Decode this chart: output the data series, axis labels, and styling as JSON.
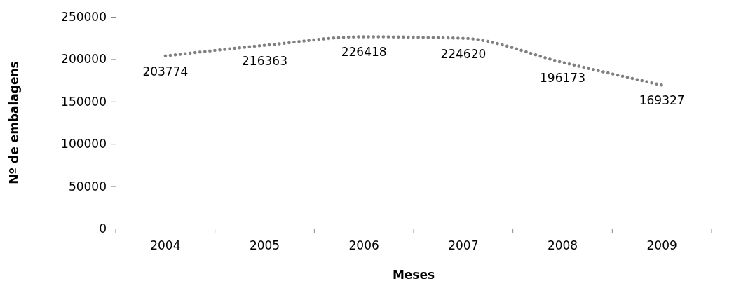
{
  "chart_data": {
    "type": "line",
    "xlabel": "Meses",
    "ylabel": "Nº de embalagens",
    "categories": [
      "2004",
      "2005",
      "2006",
      "2007",
      "2008",
      "2009"
    ],
    "series": [
      {
        "color": "#808080",
        "values": [
          203774,
          216363,
          226418,
          224620,
          196173,
          169327
        ]
      }
    ],
    "ylim": [
      0,
      250000
    ],
    "yticks": [
      0,
      50000,
      100000,
      150000,
      200000,
      250000
    ],
    "grid": false,
    "marker": "none",
    "line_style": "dotted",
    "data_labels": true
  }
}
